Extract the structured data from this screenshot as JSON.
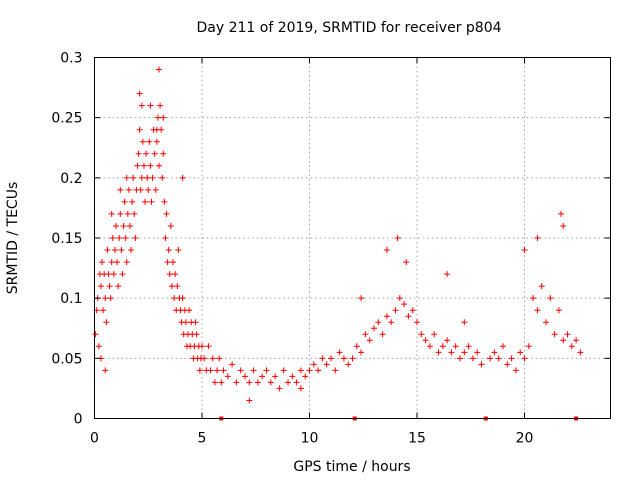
{
  "chart_data": {
    "type": "scatter",
    "title": "Day 211 of 2019, SRMTID for receiver p804",
    "xlabel": "GPS time / hours",
    "ylabel": "SRMTID / TECUs",
    "xlim": [
      0,
      24
    ],
    "ylim": [
      0,
      0.3
    ],
    "xticks": [
      "0",
      "5",
      "10",
      "15",
      "20"
    ],
    "xtick_values": [
      0,
      5,
      10,
      15,
      20
    ],
    "yticks": [
      "0",
      "0.05",
      "0.1",
      "0.15",
      "0.2",
      "0.25",
      "0.3"
    ],
    "ytick_values": [
      0,
      0.05,
      0.1,
      0.15,
      0.2,
      0.25,
      0.3
    ],
    "grid": true,
    "marker": "plus",
    "color": "#ff0000",
    "series": [
      {
        "name": "SRMTID",
        "x": [
          0.05,
          0.1,
          0.15,
          0.2,
          0.25,
          0.3,
          0.35,
          0.4,
          0.45,
          0.5,
          0.55,
          0.6,
          0.65,
          0.7,
          0.75,
          0.8,
          0.85,
          0.9,
          0.95,
          1.0,
          1.05,
          1.1,
          1.15,
          1.2,
          1.25,
          1.3,
          1.35,
          1.4,
          1.45,
          1.5,
          1.55,
          1.6,
          1.65,
          1.7,
          1.75,
          1.8,
          1.85,
          1.9,
          1.95,
          2.0,
          2.05,
          2.1,
          2.15,
          2.2,
          2.25,
          2.3,
          2.35,
          2.4,
          2.45,
          2.5,
          2.55,
          2.6,
          2.65,
          2.7,
          2.75,
          2.8,
          2.85,
          2.9,
          2.95,
          3.0,
          3.05,
          3.1,
          3.15,
          3.2,
          3.25,
          3.3,
          3.35,
          3.4,
          3.45,
          3.5,
          3.55,
          3.6,
          3.65,
          3.7,
          3.75,
          3.8,
          3.85,
          3.9,
          3.95,
          4.0,
          4.05,
          4.1,
          4.15,
          4.2,
          4.25,
          4.3,
          4.35,
          4.4,
          4.45,
          4.5,
          4.55,
          4.6,
          4.65,
          4.7,
          4.75,
          4.8,
          4.85,
          4.9,
          4.95,
          5.0,
          5.1,
          5.2,
          5.3,
          5.4,
          5.5,
          5.6,
          5.7,
          5.8,
          5.9,
          6.0,
          6.2,
          6.4,
          6.6,
          6.8,
          7.0,
          7.2,
          7.4,
          7.6,
          7.8,
          8.0,
          8.2,
          8.4,
          8.6,
          8.8,
          9.0,
          9.2,
          9.4,
          9.6,
          9.8,
          10.0,
          10.2,
          10.4,
          10.6,
          10.8,
          11.0,
          11.2,
          11.4,
          11.6,
          11.8,
          12.0,
          12.2,
          12.4,
          12.6,
          12.8,
          13.0,
          13.2,
          13.4,
          13.6,
          13.8,
          14.0,
          14.2,
          14.4,
          14.6,
          14.8,
          15.0,
          15.2,
          15.4,
          15.6,
          15.8,
          16.0,
          16.2,
          16.4,
          16.6,
          16.8,
          17.0,
          17.2,
          17.4,
          17.6,
          17.8,
          18.0,
          18.4,
          18.6,
          18.8,
          19.0,
          19.2,
          19.4,
          19.6,
          19.8,
          20.0,
          20.2,
          20.4,
          20.6,
          20.8,
          21.0,
          21.2,
          21.4,
          21.6,
          21.8,
          22.0,
          22.2,
          22.4,
          22.6,
          2.1,
          2.2,
          3.0,
          0.3,
          0.5,
          1.5,
          3.2,
          2.6,
          0.8,
          4.1,
          1.2,
          2.9,
          14.1,
          13.6,
          14.5,
          21.7,
          21.8,
          20.6,
          20.0,
          12.4,
          17.2,
          16.4,
          9.6,
          7.2
        ],
        "y": [
          0.07,
          0.09,
          0.1,
          0.06,
          0.12,
          0.11,
          0.13,
          0.09,
          0.12,
          0.1,
          0.08,
          0.14,
          0.12,
          0.11,
          0.1,
          0.13,
          0.15,
          0.12,
          0.14,
          0.16,
          0.13,
          0.11,
          0.15,
          0.17,
          0.14,
          0.12,
          0.16,
          0.18,
          0.15,
          0.13,
          0.17,
          0.19,
          0.16,
          0.14,
          0.18,
          0.2,
          0.17,
          0.15,
          0.19,
          0.21,
          0.22,
          0.24,
          0.19,
          0.2,
          0.23,
          0.21,
          0.18,
          0.22,
          0.2,
          0.19,
          0.23,
          0.21,
          0.18,
          0.2,
          0.24,
          0.22,
          0.19,
          0.23,
          0.25,
          0.21,
          0.26,
          0.24,
          0.2,
          0.22,
          0.18,
          0.15,
          0.17,
          0.13,
          0.14,
          0.12,
          0.16,
          0.11,
          0.13,
          0.1,
          0.12,
          0.09,
          0.11,
          0.14,
          0.1,
          0.09,
          0.08,
          0.1,
          0.07,
          0.09,
          0.08,
          0.06,
          0.07,
          0.09,
          0.06,
          0.08,
          0.07,
          0.05,
          0.06,
          0.08,
          0.07,
          0.05,
          0.06,
          0.04,
          0.05,
          0.06,
          0.05,
          0.04,
          0.06,
          0.04,
          0.05,
          0.03,
          0.04,
          0.05,
          0.03,
          0.04,
          0.035,
          0.045,
          0.03,
          0.04,
          0.035,
          0.03,
          0.04,
          0.03,
          0.035,
          0.04,
          0.03,
          0.035,
          0.025,
          0.04,
          0.03,
          0.035,
          0.03,
          0.04,
          0.035,
          0.04,
          0.045,
          0.04,
          0.05,
          0.045,
          0.05,
          0.04,
          0.055,
          0.05,
          0.045,
          0.05,
          0.06,
          0.055,
          0.07,
          0.065,
          0.075,
          0.08,
          0.07,
          0.085,
          0.08,
          0.09,
          0.1,
          0.095,
          0.085,
          0.09,
          0.08,
          0.07,
          0.065,
          0.06,
          0.07,
          0.055,
          0.06,
          0.065,
          0.055,
          0.06,
          0.05,
          0.055,
          0.06,
          0.05,
          0.055,
          0.045,
          0.05,
          0.055,
          0.05,
          0.06,
          0.045,
          0.05,
          0.04,
          0.055,
          0.05,
          0.06,
          0.1,
          0.09,
          0.11,
          0.08,
          0.1,
          0.07,
          0.09,
          0.065,
          0.07,
          0.06,
          0.065,
          0.055,
          0.27,
          0.26,
          0.29,
          0.05,
          0.04,
          0.2,
          0.25,
          0.26,
          0.17,
          0.2,
          0.19,
          0.24,
          0.15,
          0.14,
          0.13,
          0.17,
          0.16,
          0.15,
          0.14,
          0.1,
          0.08,
          0.12,
          0.025,
          0.015
        ]
      }
    ],
    "edge_markers_x": [
      5.9,
      12.1,
      18.2,
      22.4
    ]
  }
}
